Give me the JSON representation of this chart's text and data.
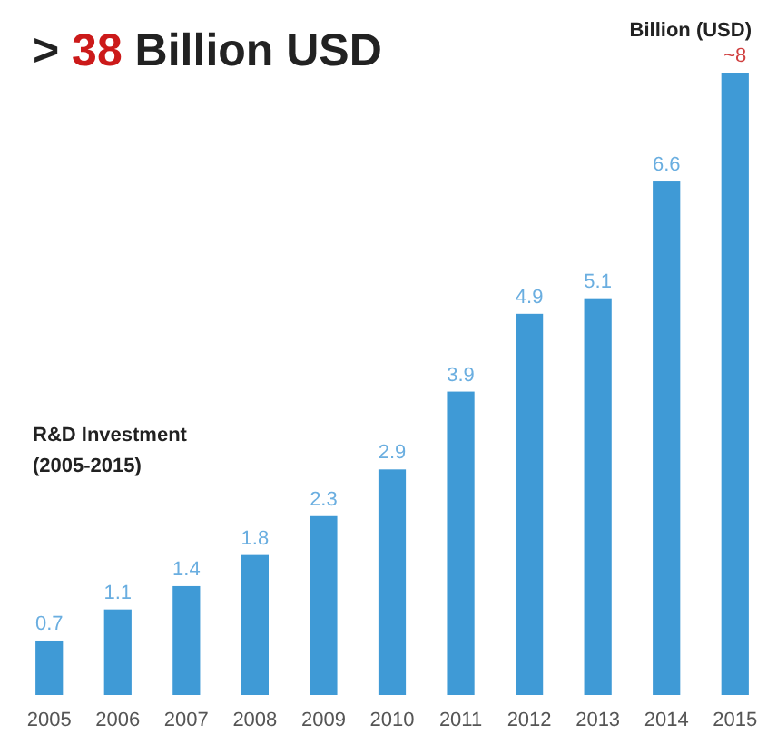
{
  "chart_data": {
    "type": "bar",
    "title": "> 38 Billion USD",
    "categories": [
      "2005",
      "2006",
      "2007",
      "2008",
      "2009",
      "2010",
      "2011",
      "2012",
      "2013",
      "2014",
      "2015"
    ],
    "values": [
      0.7,
      1.1,
      1.4,
      1.8,
      2.3,
      2.9,
      3.9,
      4.9,
      5.1,
      6.6,
      8
    ],
    "value_labels": [
      "0.7",
      "1.1",
      "1.4",
      "1.8",
      "2.3",
      "2.9",
      "3.9",
      "4.9",
      "5.1",
      "6.6",
      "~8"
    ],
    "color": "#3f9ad6",
    "annotations": [
      "Billion (USD)",
      "R&D Investment\n(2005-2015)"
    ]
  }
}
